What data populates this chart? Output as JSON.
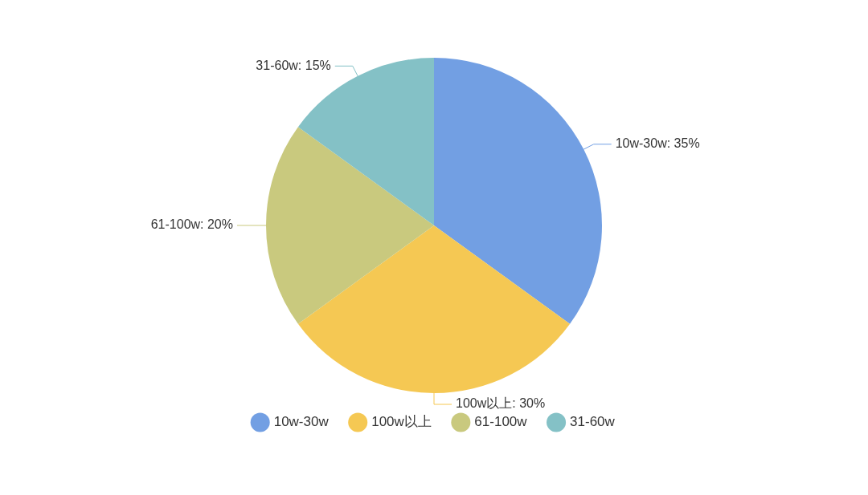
{
  "chart_data": {
    "type": "pie",
    "categories": [
      "10w-30w",
      "100w以上",
      "61-100w",
      "31-60w"
    ],
    "values": [
      35,
      30,
      20,
      15
    ],
    "value_labels": [
      "10w-30w: 35%",
      "100w以上: 30%",
      "61-100w: 20%",
      "31-60w: 15%"
    ],
    "colors": [
      "#729fe3",
      "#f5c853",
      "#c9c97e",
      "#84c1c6"
    ],
    "legend": "bottom"
  }
}
